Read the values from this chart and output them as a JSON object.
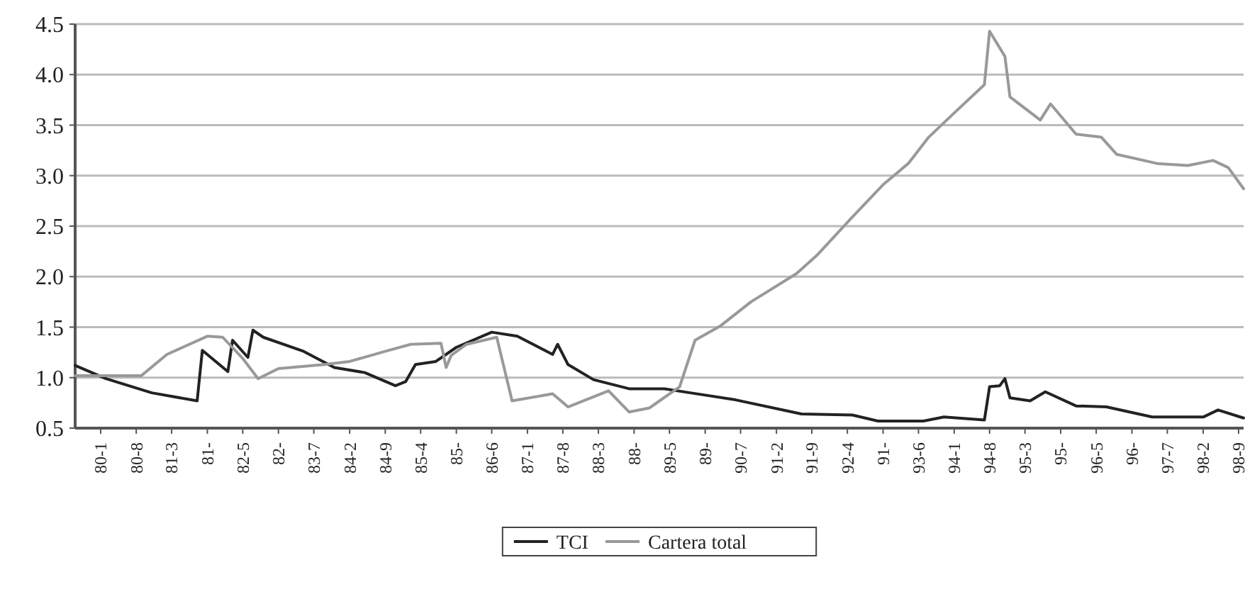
{
  "chart_data": {
    "type": "line",
    "xlim": [
      "1979-08",
      "1998-10"
    ],
    "ylim": [
      0.5,
      4.5
    ],
    "yticks": [
      {
        "value": 0.5,
        "label": "0.5"
      },
      {
        "value": 1,
        "label": "1.0"
      },
      {
        "value": 1.5,
        "label": "1.5"
      },
      {
        "value": 2,
        "label": "2.0"
      },
      {
        "value": 2.5,
        "label": "2.5"
      },
      {
        "value": 3,
        "label": "3.0"
      },
      {
        "value": 3.5,
        "label": "3.5"
      },
      {
        "value": 4,
        "label": "4.0"
      },
      {
        "value": 4.5,
        "label": "4.5"
      }
    ],
    "xticks": [
      {
        "value": "1980-01",
        "label": "80-1"
      },
      {
        "value": "1980-08",
        "label": "80-8"
      },
      {
        "value": "1981-03",
        "label": "81-3"
      },
      {
        "value": "1981-10",
        "label": "81-"
      },
      {
        "value": "1982-05",
        "label": "82-5"
      },
      {
        "value": "1982-12",
        "label": "82-"
      },
      {
        "value": "1983-07",
        "label": "83-7"
      },
      {
        "value": "1984-02",
        "label": "84-2"
      },
      {
        "value": "1984-09",
        "label": "84-9"
      },
      {
        "value": "1985-04",
        "label": "85-4"
      },
      {
        "value": "1985-11",
        "label": "85-"
      },
      {
        "value": "1986-06",
        "label": "86-6"
      },
      {
        "value": "1987-01",
        "label": "87-1"
      },
      {
        "value": "1987-08",
        "label": "87-8"
      },
      {
        "value": "1988-03",
        "label": "88-3"
      },
      {
        "value": "1988-10",
        "label": "88-"
      },
      {
        "value": "1989-05",
        "label": "89-5"
      },
      {
        "value": "1989-12",
        "label": "89-"
      },
      {
        "value": "1990-07",
        "label": "90-7"
      },
      {
        "value": "1991-02",
        "label": "91-2"
      },
      {
        "value": "1991-09",
        "label": "91-9"
      },
      {
        "value": "1992-04",
        "label": "92-4"
      },
      {
        "value": "1992-11",
        "label": "91-"
      },
      {
        "value": "1993-06",
        "label": "93-6"
      },
      {
        "value": "1994-01",
        "label": "94-1"
      },
      {
        "value": "1994-08",
        "label": "94-8"
      },
      {
        "value": "1995-03",
        "label": "95-3"
      },
      {
        "value": "1995-10",
        "label": "95-"
      },
      {
        "value": "1996-05",
        "label": "96-5"
      },
      {
        "value": "1996-12",
        "label": "96-"
      },
      {
        "value": "1997-07",
        "label": "97-7"
      },
      {
        "value": "1998-02",
        "label": "98-2"
      },
      {
        "value": "1998-09",
        "label": "98-9"
      }
    ],
    "grid": "y",
    "legend": "bottom",
    "marker": "none",
    "line_style": "solid",
    "series": [
      {
        "name": "TCI",
        "color": "#222222",
        "x": [
          "1979-08",
          "1980-02",
          "1980-11",
          "1981-08",
          "1981-09",
          "1982-02",
          "1982-03",
          "1982-06",
          "1982-07",
          "1982-09",
          "1983-05",
          "1983-11",
          "1984-05",
          "1984-11",
          "1985-01",
          "1985-03",
          "1985-07",
          "1985-11",
          "1986-06",
          "1986-11",
          "1987-06",
          "1987-07",
          "1987-09",
          "1988-02",
          "1988-09",
          "1989-04",
          "1989-09",
          "1990-06",
          "1991-07",
          "1992-05",
          "1992-10",
          "1993-07",
          "1993-11",
          "1994-07",
          "1994-08",
          "1994-10",
          "1994-11",
          "1994-12",
          "1995-04",
          "1995-07",
          "1996-01",
          "1996-07",
          "1997-04",
          "1998-02",
          "1998-05",
          "1998-10"
        ],
        "values": [
          1.12,
          0.99,
          0.85,
          0.77,
          1.27,
          1.06,
          1.37,
          1.2,
          1.47,
          1.4,
          1.26,
          1.1,
          1.05,
          0.92,
          0.96,
          1.13,
          1.16,
          1.3,
          1.45,
          1.41,
          1.23,
          1.33,
          1.13,
          0.98,
          0.89,
          0.89,
          0.85,
          0.78,
          0.64,
          0.63,
          0.57,
          0.57,
          0.61,
          0.58,
          0.91,
          0.92,
          0.99,
          0.8,
          0.77,
          0.86,
          0.72,
          0.71,
          0.61,
          0.61,
          0.68,
          0.6
        ]
      },
      {
        "name": "Cartera total",
        "color": "#999999",
        "x": [
          "1979-08",
          "1980-09",
          "1981-02",
          "1981-10",
          "1982-01",
          "1982-05",
          "1982-08",
          "1982-12",
          "1983-09",
          "1984-02",
          "1984-09",
          "1985-02",
          "1985-08",
          "1985-09",
          "1985-10",
          "1986-01",
          "1986-07",
          "1986-10",
          "1987-06",
          "1987-09",
          "1988-05",
          "1988-09",
          "1989-01",
          "1989-07",
          "1989-10",
          "1990-03",
          "1990-09",
          "1991-06",
          "1991-10",
          "1992-05",
          "1992-11",
          "1993-04",
          "1993-08",
          "1994-01",
          "1994-07",
          "1994-08",
          "1994-11",
          "1994-12",
          "1995-06",
          "1995-08",
          "1996-01",
          "1996-06",
          "1996-09",
          "1997-05",
          "1997-11",
          "1998-04",
          "1998-07",
          "1998-10"
        ],
        "values": [
          1.02,
          1.02,
          1.23,
          1.41,
          1.4,
          1.19,
          0.99,
          1.09,
          1.13,
          1.16,
          1.26,
          1.33,
          1.34,
          1.1,
          1.22,
          1.33,
          1.4,
          0.77,
          0.84,
          0.71,
          0.87,
          0.66,
          0.7,
          0.91,
          1.37,
          1.51,
          1.75,
          2.03,
          2.21,
          2.59,
          2.91,
          3.12,
          3.38,
          3.62,
          3.9,
          4.43,
          4.18,
          3.78,
          3.55,
          3.71,
          3.41,
          3.38,
          3.21,
          3.12,
          3.1,
          3.15,
          3.08,
          2.87
        ]
      }
    ]
  }
}
